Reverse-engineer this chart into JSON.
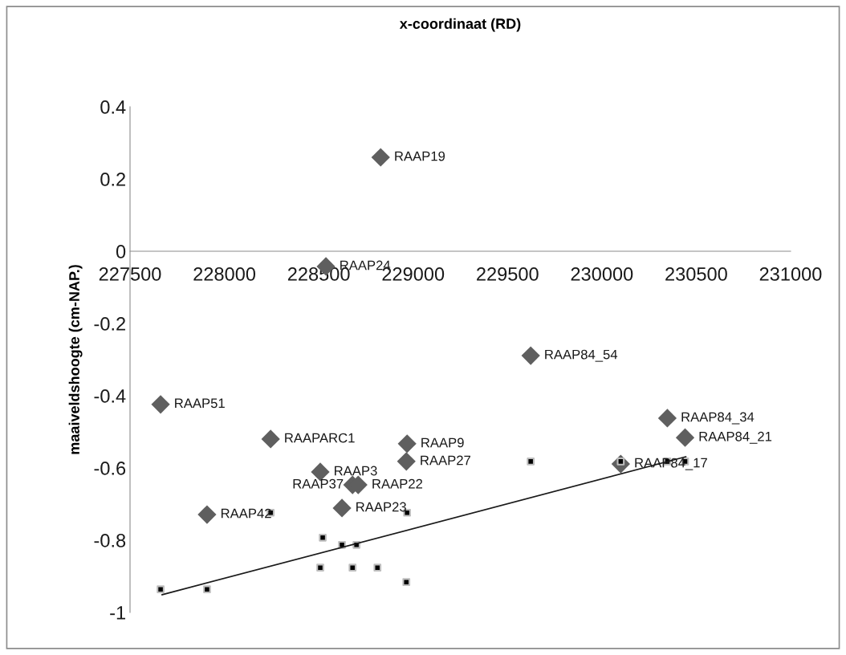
{
  "chart_data": {
    "type": "scatter",
    "title": "x-coordinaat (RD)",
    "ylabel": "maaiveldshoogte (cm-NAP.)",
    "xlim": [
      227500,
      231000
    ],
    "xticks": [
      227500,
      228000,
      228500,
      229000,
      229500,
      230000,
      230500,
      231000
    ],
    "ylim": [
      -1,
      0.4
    ],
    "yticks": [
      -1,
      -0.8,
      -0.6,
      -0.4,
      -0.2,
      0,
      0.2,
      0.4
    ],
    "grid": false,
    "legend": false,
    "series": [
      {
        "color": "#5f5f5f",
        "marker": "diamond",
        "x": [
          228828,
          228538,
          229623,
          227662,
          228245,
          228968,
          228964,
          228508,
          228679,
          228709,
          228623,
          227908,
          230100,
          230347,
          230441
        ],
        "values": [
          0.26,
          -0.042,
          -0.289,
          -0.424,
          -0.52,
          -0.533,
          -0.582,
          -0.611,
          -0.647,
          -0.647,
          -0.711,
          -0.729,
          -0.589,
          -0.462,
          -0.516
        ]
      },
      {
        "color": "#000000",
        "marker": "square",
        "x": [
          227662,
          227908,
          228245,
          228521,
          228623,
          228700,
          228508,
          228679,
          228811,
          228964,
          228968,
          229623,
          230100,
          230347,
          230441
        ],
        "values": [
          -0.936,
          -0.936,
          -0.724,
          -0.793,
          -0.813,
          -0.813,
          -0.876,
          -0.876,
          -0.876,
          -0.916,
          -0.724,
          -0.582,
          -0.582,
          -0.582,
          -0.582
        ]
      },
      {
        "type": "line",
        "color": "#1a1a1a",
        "marker": "none",
        "line_style": "solid",
        "x": [
          227670,
          230445
        ],
        "values": [
          -0.951,
          -0.569
        ]
      }
    ],
    "annotations": [
      {
        "text": "RAAP19",
        "x": 228828,
        "y": 0.26
      },
      {
        "text": "RAAP24",
        "x": 228538,
        "y": -0.042
      },
      {
        "text": "RAAP84_54",
        "x": 229623,
        "y": -0.289
      },
      {
        "text": "RAAP51",
        "x": 227662,
        "y": -0.424
      },
      {
        "text": "RAAPARC1",
        "x": 228245,
        "y": -0.52
      },
      {
        "text": "RAAP9",
        "x": 228968,
        "y": -0.533
      },
      {
        "text": "RAAP27",
        "x": 228964,
        "y": -0.582
      },
      {
        "text": "RAAP3",
        "x": 228508,
        "y": -0.611
      },
      {
        "text": "RAAP22",
        "x": 228709,
        "y": -0.647
      },
      {
        "text": "RAAP37",
        "x": 228679,
        "y": -0.647
      },
      {
        "text": "RAAP23",
        "x": 228623,
        "y": -0.711
      },
      {
        "text": "RAAP42",
        "x": 227908,
        "y": -0.729
      },
      {
        "text": "RAAP84_17",
        "x": 230100,
        "y": -0.589
      },
      {
        "text": "RAAP84_34",
        "x": 230347,
        "y": -0.462
      },
      {
        "text": "RAAP84_21",
        "x": 230441,
        "y": -0.516
      }
    ]
  }
}
